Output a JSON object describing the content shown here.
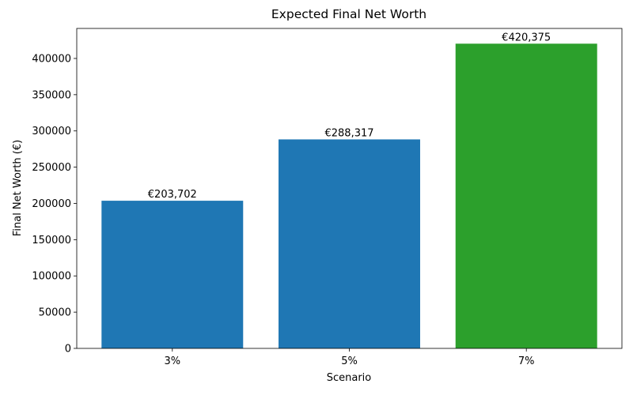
{
  "chart_data": {
    "type": "bar",
    "title": "Expected Final Net Worth",
    "x_label": "Scenario",
    "y_label": "Final Net Worth (€)",
    "categories": [
      "3%",
      "5%",
      "7%"
    ],
    "values": [
      203702,
      288317,
      420375
    ],
    "value_labels": [
      "€203,702",
      "€288,317",
      "€420,375"
    ],
    "colors": [
      "#1f77b4",
      "#1f77b4",
      "#2ca02c"
    ],
    "ylim": [
      0,
      441394
    ],
    "yticks": [
      0,
      50000,
      100000,
      150000,
      200000,
      250000,
      300000,
      350000,
      400000
    ],
    "grid": false
  }
}
